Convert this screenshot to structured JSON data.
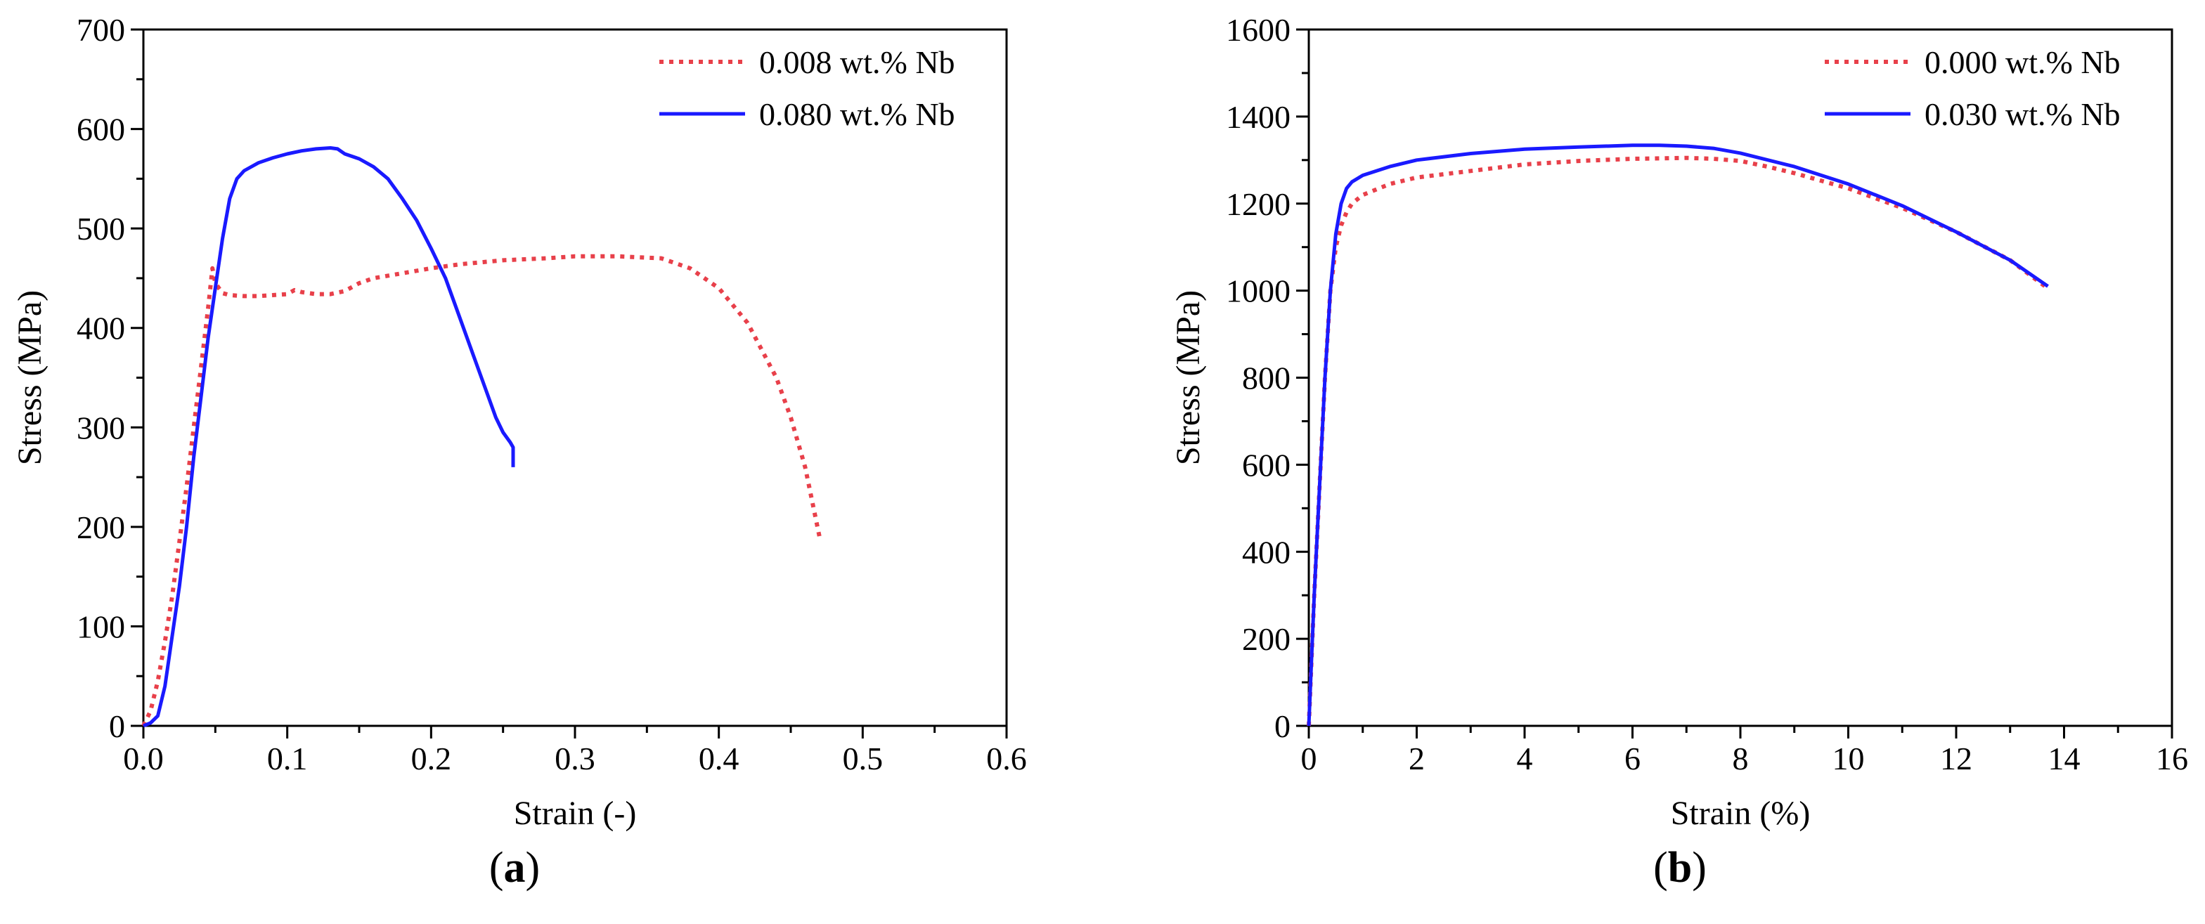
{
  "chart_data": [
    {
      "type": "line",
      "panel_label": "a",
      "title": "",
      "xlabel": "Strain (-)",
      "ylabel": "Stress (MPa)",
      "xlim": [
        0,
        0.6
      ],
      "ylim": [
        0,
        700
      ],
      "xticks": [
        0.0,
        0.1,
        0.2,
        0.3,
        0.4,
        0.5,
        0.6
      ],
      "xtick_labels": [
        "0.0",
        "0.1",
        "0.2",
        "0.3",
        "0.4",
        "0.5",
        "0.6"
      ],
      "yticks": [
        0,
        100,
        200,
        300,
        400,
        500,
        600,
        700
      ],
      "ytick_labels": [
        "0",
        "100",
        "200",
        "300",
        "400",
        "500",
        "600",
        "700"
      ],
      "legend_position": "top-right",
      "grid": false,
      "series": [
        {
          "name": "0.008 wt.% Nb",
          "color": "#e8404a",
          "style": "dotted",
          "x": [
            0.0,
            0.005,
            0.01,
            0.015,
            0.02,
            0.025,
            0.03,
            0.035,
            0.04,
            0.045,
            0.048,
            0.05,
            0.055,
            0.06,
            0.07,
            0.08,
            0.09,
            0.1,
            0.105,
            0.11,
            0.12,
            0.13,
            0.14,
            0.15,
            0.16,
            0.18,
            0.2,
            0.22,
            0.25,
            0.28,
            0.3,
            0.33,
            0.36,
            0.38,
            0.4,
            0.42,
            0.44,
            0.45,
            0.46,
            0.465,
            0.47
          ],
          "y": [
            0,
            15,
            45,
            85,
            130,
            185,
            240,
            300,
            360,
            420,
            460,
            445,
            435,
            433,
            432,
            432,
            433,
            434,
            438,
            436,
            434,
            434,
            437,
            445,
            450,
            455,
            460,
            464,
            468,
            470,
            472,
            472,
            470,
            460,
            440,
            405,
            350,
            310,
            260,
            225,
            190
          ]
        },
        {
          "name": "0.080 wt.% Nb",
          "color": "#1a1aff",
          "style": "solid",
          "x": [
            0.0,
            0.005,
            0.01,
            0.015,
            0.02,
            0.025,
            0.03,
            0.035,
            0.04,
            0.045,
            0.05,
            0.055,
            0.06,
            0.065,
            0.07,
            0.08,
            0.09,
            0.1,
            0.11,
            0.12,
            0.13,
            0.135,
            0.14,
            0.15,
            0.16,
            0.17,
            0.18,
            0.19,
            0.2,
            0.21,
            0.22,
            0.23,
            0.24,
            0.245,
            0.25,
            0.255,
            0.257,
            0.257
          ],
          "y": [
            0,
            3,
            10,
            40,
            90,
            140,
            200,
            270,
            330,
            390,
            440,
            490,
            530,
            550,
            558,
            566,
            571,
            575,
            578,
            580,
            581,
            580,
            575,
            570,
            562,
            550,
            530,
            508,
            480,
            450,
            410,
            370,
            330,
            310,
            295,
            285,
            280,
            260
          ]
        }
      ]
    },
    {
      "type": "line",
      "panel_label": "b",
      "title": "",
      "xlabel": "Strain (%)",
      "ylabel": "Stress (MPa)",
      "xlim": [
        0,
        16
      ],
      "ylim": [
        0,
        1600
      ],
      "xticks": [
        0,
        2,
        4,
        6,
        8,
        10,
        12,
        14,
        16
      ],
      "xtick_labels": [
        "0",
        "2",
        "4",
        "6",
        "8",
        "10",
        "12",
        "14",
        "16"
      ],
      "yticks": [
        0,
        200,
        400,
        600,
        800,
        1000,
        1200,
        1400,
        1600
      ],
      "ytick_labels": [
        "0",
        "200",
        "400",
        "600",
        "800",
        "1000",
        "1200",
        "1400",
        "1600"
      ],
      "legend_position": "top-right",
      "grid": false,
      "series": [
        {
          "name": "0.000 wt.% Nb",
          "color": "#e8404a",
          "style": "dotted",
          "x": [
            0.0,
            0.05,
            0.1,
            0.2,
            0.3,
            0.4,
            0.5,
            0.6,
            0.7,
            0.8,
            1.0,
            1.5,
            2,
            3,
            4,
            5,
            6,
            7,
            7.5,
            8,
            8.5,
            9,
            10,
            11,
            12,
            13,
            13.7
          ],
          "y": [
            0,
            150,
            300,
            550,
            800,
            1000,
            1100,
            1150,
            1180,
            1200,
            1220,
            1245,
            1260,
            1275,
            1290,
            1298,
            1303,
            1305,
            1303,
            1298,
            1285,
            1270,
            1235,
            1190,
            1135,
            1070,
            1005
          ]
        },
        {
          "name": "0.030 wt.% Nb",
          "color": "#1a1aff",
          "style": "solid",
          "x": [
            0.0,
            0.05,
            0.1,
            0.2,
            0.3,
            0.4,
            0.5,
            0.6,
            0.7,
            0.8,
            1.0,
            1.5,
            2,
            3,
            4,
            5,
            6,
            6.5,
            7,
            7.5,
            8,
            9,
            10,
            11,
            12,
            13,
            13.7
          ],
          "y": [
            0,
            150,
            300,
            550,
            800,
            1000,
            1130,
            1200,
            1235,
            1250,
            1265,
            1285,
            1300,
            1315,
            1325,
            1330,
            1334,
            1334,
            1332,
            1327,
            1316,
            1285,
            1245,
            1195,
            1135,
            1070,
            1010
          ]
        }
      ]
    }
  ]
}
